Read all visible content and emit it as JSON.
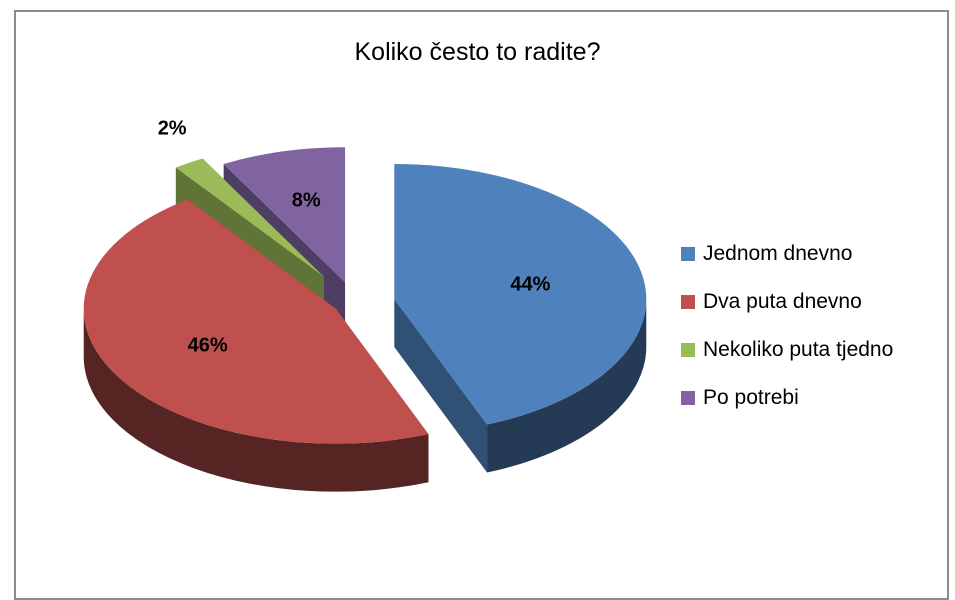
{
  "chart_data": {
    "type": "pie",
    "title": "Koliko često to radite?",
    "categories": [
      "Jednom dnevno",
      "Dva puta dnevno",
      "Nekoliko puta tjedno",
      "Po potrebi"
    ],
    "values": [
      44,
      46,
      2,
      8
    ],
    "value_labels": [
      "44%",
      "46%",
      "2%",
      "8%"
    ],
    "colors": [
      "#4f81bd",
      "#c0504d",
      "#9bbb59",
      "#8064a2"
    ],
    "legend_position": "right",
    "style": "3d-exploded"
  }
}
